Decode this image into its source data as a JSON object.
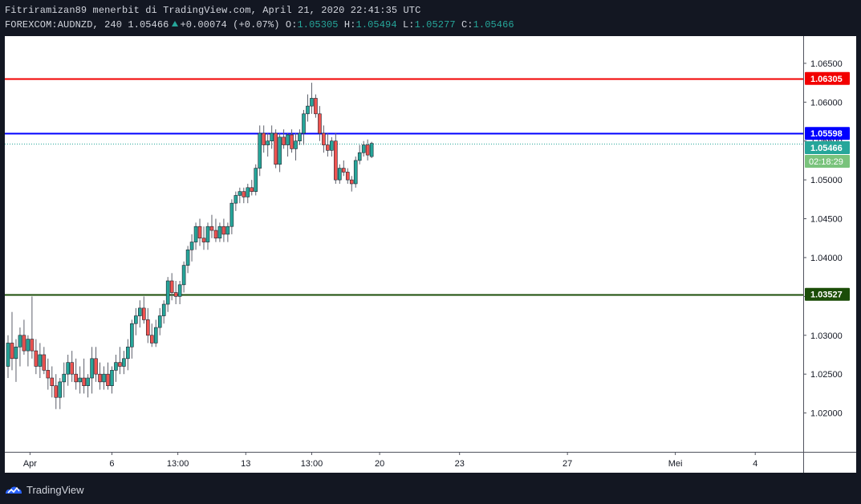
{
  "header": {
    "attribution": "Fitriramizan89 menerbit di TradingView.com, April 21, 2020 22:41:35 UTC",
    "symbol_interval": "FOREXCOM:AUDNZD, 240",
    "last": "1.05466",
    "change": "+0.00074 (+0.07%)",
    "open_label": "O:",
    "open": "1.05305",
    "high_label": "H:",
    "high": "1.05494",
    "low_label": "L:",
    "low": "1.05277",
    "close_label": "C:",
    "close": "1.05466"
  },
  "footer": {
    "brand": "TradingView"
  },
  "chart_data": {
    "type": "candlestick",
    "symbol": "FOREXCOM:AUDNZD",
    "interval": "240",
    "ylim": [
      1.015,
      1.0685
    ],
    "y_ticks": [
      "1.06500",
      "1.06000",
      "1.05500",
      "1.05000",
      "1.04500",
      "1.04000",
      "1.03500",
      "1.03000",
      "1.02500",
      "1.02000"
    ],
    "y_tick_values": [
      1.065,
      1.06,
      1.055,
      1.05,
      1.045,
      1.04,
      1.035,
      1.03,
      1.025,
      1.02
    ],
    "x_ticks": [
      {
        "label": "Apr",
        "candle": 5.5
      },
      {
        "label": "6",
        "candle": 26
      },
      {
        "label": "13:00",
        "candle": 42.5
      },
      {
        "label": "13",
        "candle": 59.5
      },
      {
        "label": "13:00",
        "candle": 76
      },
      {
        "label": "20",
        "candle": 93
      },
      {
        "label": "23",
        "candle": 113
      },
      {
        "label": "27",
        "candle": 140
      },
      {
        "label": "Mei",
        "candle": 167
      },
      {
        "label": "4",
        "candle": 187
      }
    ],
    "x_axis_end_candle": 197,
    "horizontal_lines": [
      {
        "value": 1.06305,
        "label": "1.06305",
        "color": "#f20000"
      },
      {
        "value": 1.05598,
        "label": "1.05598",
        "color": "#0000ff"
      },
      {
        "value": 1.03527,
        "label": "1.03527",
        "color": "#1b4d08"
      }
    ],
    "last_price": {
      "value": 1.05466,
      "label": "1.05466",
      "countdown": "02:18:29",
      "color": "#26a69a"
    },
    "up_color": "#26a69a",
    "down_color": "#ef5350",
    "candles": [
      [
        1.026,
        1.03,
        1.0245,
        1.029
      ],
      [
        1.029,
        1.033,
        1.0255,
        1.027
      ],
      [
        1.027,
        1.0295,
        1.024,
        1.0285
      ],
      [
        1.0285,
        1.031,
        1.026,
        1.03
      ],
      [
        1.03,
        1.032,
        1.0275,
        1.028
      ],
      [
        1.028,
        1.03,
        1.026,
        1.0295
      ],
      [
        1.0295,
        1.035,
        1.027,
        1.028
      ],
      [
        1.028,
        1.0295,
        1.025,
        1.026
      ],
      [
        1.026,
        1.029,
        1.0245,
        1.0275
      ],
      [
        1.0275,
        1.0285,
        1.025,
        1.0255
      ],
      [
        1.0255,
        1.027,
        1.023,
        1.0245
      ],
      [
        1.0245,
        1.026,
        1.022,
        1.0235
      ],
      [
        1.0235,
        1.025,
        1.0205,
        1.022
      ],
      [
        1.022,
        1.0245,
        1.0205,
        1.024
      ],
      [
        1.024,
        1.0265,
        1.022,
        1.025
      ],
      [
        1.025,
        1.0275,
        1.0235,
        1.0265
      ],
      [
        1.0265,
        1.028,
        1.024,
        1.025
      ],
      [
        1.025,
        1.027,
        1.023,
        1.024
      ],
      [
        1.024,
        1.026,
        1.0225,
        1.0245
      ],
      [
        1.0245,
        1.027,
        1.0225,
        1.0235
      ],
      [
        1.0235,
        1.025,
        1.022,
        1.0245
      ],
      [
        1.0245,
        1.0285,
        1.0225,
        1.027
      ],
      [
        1.027,
        1.0285,
        1.024,
        1.025
      ],
      [
        1.025,
        1.0265,
        1.023,
        1.024
      ],
      [
        1.024,
        1.026,
        1.023,
        1.025
      ],
      [
        1.025,
        1.0265,
        1.023,
        1.0235
      ],
      [
        1.0235,
        1.026,
        1.0225,
        1.0255
      ],
      [
        1.0255,
        1.0275,
        1.024,
        1.0265
      ],
      [
        1.0265,
        1.0285,
        1.025,
        1.026
      ],
      [
        1.026,
        1.028,
        1.025,
        1.027
      ],
      [
        1.027,
        1.0295,
        1.0255,
        1.0285
      ],
      [
        1.0285,
        1.032,
        1.027,
        1.0315
      ],
      [
        1.0315,
        1.0335,
        1.03,
        1.0325
      ],
      [
        1.0325,
        1.0345,
        1.031,
        1.0335
      ],
      [
        1.0335,
        1.035,
        1.0315,
        1.032
      ],
      [
        1.032,
        1.0335,
        1.029,
        1.03
      ],
      [
        1.03,
        1.0315,
        1.0285,
        1.029
      ],
      [
        1.029,
        1.032,
        1.0285,
        1.031
      ],
      [
        1.031,
        1.0335,
        1.03,
        1.0325
      ],
      [
        1.0325,
        1.0345,
        1.0315,
        1.034
      ],
      [
        1.034,
        1.0375,
        1.033,
        1.037
      ],
      [
        1.037,
        1.038,
        1.0345,
        1.0355
      ],
      [
        1.0355,
        1.037,
        1.034,
        1.035
      ],
      [
        1.035,
        1.037,
        1.034,
        1.0365
      ],
      [
        1.0365,
        1.0395,
        1.0355,
        1.039
      ],
      [
        1.039,
        1.0415,
        1.038,
        1.041
      ],
      [
        1.041,
        1.043,
        1.0395,
        1.042
      ],
      [
        1.042,
        1.0445,
        1.041,
        1.044
      ],
      [
        1.044,
        1.045,
        1.0415,
        1.0425
      ],
      [
        1.0425,
        1.044,
        1.041,
        1.042
      ],
      [
        1.042,
        1.0445,
        1.041,
        1.044
      ],
      [
        1.044,
        1.0455,
        1.0425,
        1.0435
      ],
      [
        1.0435,
        1.045,
        1.042,
        1.0425
      ],
      [
        1.0425,
        1.0445,
        1.042,
        1.044
      ],
      [
        1.044,
        1.045,
        1.042,
        1.043
      ],
      [
        1.043,
        1.0445,
        1.042,
        1.044
      ],
      [
        1.044,
        1.0475,
        1.043,
        1.047
      ],
      [
        1.047,
        1.0485,
        1.046,
        1.048
      ],
      [
        1.048,
        1.049,
        1.047,
        1.0485
      ],
      [
        1.0485,
        1.049,
        1.047,
        1.0478
      ],
      [
        1.0478,
        1.0495,
        1.047,
        1.049
      ],
      [
        1.049,
        1.05,
        1.048,
        1.0485
      ],
      [
        1.0485,
        1.052,
        1.048,
        1.0515
      ],
      [
        1.0515,
        1.057,
        1.0505,
        1.056
      ],
      [
        1.056,
        1.057,
        1.0535,
        1.0545
      ],
      [
        1.0545,
        1.056,
        1.053,
        1.055
      ],
      [
        1.055,
        1.057,
        1.054,
        1.056
      ],
      [
        1.056,
        1.0565,
        1.0515,
        1.052
      ],
      [
        1.052,
        1.056,
        1.051,
        1.0555
      ],
      [
        1.0555,
        1.0565,
        1.054,
        1.0545
      ],
      [
        1.0545,
        1.056,
        1.053,
        1.0558
      ],
      [
        1.0558,
        1.0565,
        1.0535,
        1.054
      ],
      [
        1.054,
        1.056,
        1.0525,
        1.055
      ],
      [
        1.055,
        1.0565,
        1.0545,
        1.056
      ],
      [
        1.056,
        1.059,
        1.0545,
        1.0585
      ],
      [
        1.0585,
        1.061,
        1.0575,
        1.0595
      ],
      [
        1.0595,
        1.0625,
        1.0585,
        1.0605
      ],
      [
        1.0605,
        1.061,
        1.058,
        1.0585
      ],
      [
        1.0585,
        1.0595,
        1.055,
        1.056
      ],
      [
        1.056,
        1.057,
        1.0535,
        1.0545
      ],
      [
        1.0545,
        1.056,
        1.053,
        1.0538
      ],
      [
        1.0538,
        1.0555,
        1.053,
        1.055
      ],
      [
        1.055,
        1.056,
        1.0495,
        1.05
      ],
      [
        1.05,
        1.052,
        1.0495,
        1.0515
      ],
      [
        1.0515,
        1.0525,
        1.0505,
        1.051
      ],
      [
        1.051,
        1.0515,
        1.0495,
        1.05
      ],
      [
        1.05,
        1.0505,
        1.0485,
        1.0495
      ],
      [
        1.0495,
        1.053,
        1.049,
        1.0525
      ],
      [
        1.0525,
        1.0545,
        1.052,
        1.0535
      ],
      [
        1.0535,
        1.055,
        1.053,
        1.0545
      ],
      [
        1.0545,
        1.0552,
        1.0525,
        1.0532
      ],
      [
        1.053,
        1.0549,
        1.0528,
        1.0547
      ]
    ]
  }
}
